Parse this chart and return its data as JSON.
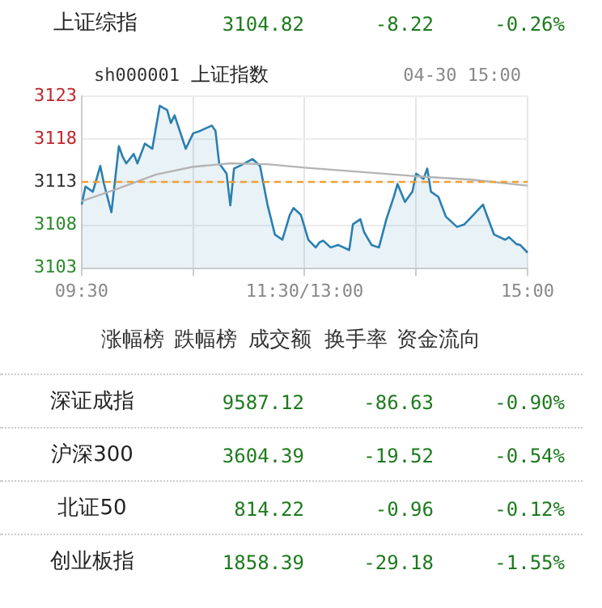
{
  "chart_data": {
    "type": "area",
    "categories": [
      "09:30",
      null,
      null,
      null,
      null,
      null,
      null,
      null,
      null,
      null,
      null,
      null,
      null,
      null,
      null,
      null,
      null,
      null,
      null,
      null,
      null,
      null,
      null,
      null,
      null,
      null,
      null,
      null,
      null,
      null,
      null,
      null,
      null,
      null,
      null,
      null,
      null,
      null,
      null,
      null,
      null,
      null,
      null,
      null,
      null,
      null,
      null,
      null,
      null,
      null,
      null,
      null,
      null,
      null,
      null,
      null,
      null,
      null,
      null,
      null,
      "11:30/13:00",
      null,
      null,
      null,
      null,
      null,
      null,
      null,
      null,
      null,
      null,
      null,
      null,
      null,
      null,
      null,
      null,
      null,
      null,
      null,
      null,
      null,
      null,
      null,
      null,
      null,
      null,
      null,
      null,
      null,
      null,
      null,
      null,
      null,
      null,
      null,
      null,
      null,
      null,
      null,
      null,
      null,
      null,
      null,
      null,
      null,
      null,
      null,
      null,
      null,
      null,
      null,
      null,
      null,
      null,
      null,
      null,
      null,
      null,
      null,
      "15:00"
    ],
    "series": [
      {
        "color": "#2a7fb0",
        "values": [
          3110.4,
          3112.5,
          null,
          3111.9,
          null,
          3114.9,
          3112.8,
          null,
          3109.5,
          null,
          3117.2,
          3116.0,
          3115.2,
          null,
          3116.3,
          3115.2,
          null,
          3117.5,
          null,
          3116.9,
          null,
          3121.9,
          null,
          3121.4,
          3119.9,
          3120.8,
          null,
          null,
          3116.9,
          null,
          3118.7,
          null,
          3119.0,
          null,
          null,
          3119.6,
          3119.0,
          3115.2,
          null,
          3114.0,
          3110.3,
          3114.6,
          null,
          3115.0,
          null,
          null,
          3115.7,
          null,
          3114.9,
          null,
          3110.4,
          null,
          3106.9,
          null,
          3106.3,
          null,
          3109.2,
          3110.0,
          null,
          3109.2,
          null,
          3106.3,
          null,
          3105.4,
          3106.0,
          3106.2,
          null,
          3105.4,
          null,
          3105.7,
          null,
          null,
          3105.1,
          3108.1,
          null,
          3108.7,
          3107.2,
          null,
          3105.7,
          null,
          3105.4,
          null,
          3108.7,
          null,
          3111.3,
          3112.8,
          null,
          3110.7,
          null,
          3111.9,
          3114.0,
          null,
          3113.4,
          3114.6,
          3111.9,
          null,
          3111.3,
          null,
          3109.0,
          null,
          null,
          3107.8,
          null,
          3108.1,
          null,
          3109.0,
          null,
          null,
          3110.4,
          3109.2,
          null,
          3106.9,
          null,
          null,
          3106.3,
          3106.6,
          null,
          3105.8,
          3105.7,
          null,
          3104.8
        ]
      },
      {
        "type": "line",
        "color": "#b4b4b4",
        "values": [
          3110.8,
          null,
          null,
          null,
          null,
          null,
          null,
          null,
          null,
          null,
          3112.3,
          null,
          null,
          null,
          null,
          null,
          null,
          null,
          null,
          null,
          3113.9,
          null,
          null,
          null,
          null,
          null,
          null,
          null,
          null,
          null,
          3114.8,
          null,
          null,
          null,
          null,
          null,
          null,
          null,
          null,
          null,
          3115.2,
          null,
          null,
          null,
          null,
          null,
          null,
          null,
          null,
          null,
          3115.1,
          null,
          null,
          null,
          null,
          null,
          null,
          null,
          null,
          null,
          3114.7,
          null,
          null,
          null,
          null,
          null,
          null,
          null,
          null,
          null,
          null,
          null,
          null,
          null,
          null,
          3114.2,
          null,
          null,
          null,
          null,
          null,
          null,
          null,
          null,
          null,
          null,
          null,
          null,
          null,
          null,
          3113.7,
          null,
          null,
          null,
          null,
          null,
          null,
          null,
          null,
          null,
          null,
          null,
          null,
          null,
          null,
          3113.3,
          null,
          null,
          null,
          null,
          null,
          null,
          null,
          null,
          null,
          null,
          null,
          null,
          null,
          null,
          3112.6
        ]
      }
    ],
    "ylim": [
      3103,
      3123
    ],
    "yticks": [
      3103,
      3108,
      3113,
      3118,
      3123
    ],
    "ref_lines": [
      {
        "axis": "y",
        "value": 3113.04,
        "label": null,
        "color": "#f0a030",
        "line_style": "dashed"
      }
    ],
    "grid": true,
    "legend": false,
    "marker": "none",
    "annotations": [
      "上证综指",
      "3104.82",
      "-8.22",
      "-0.26%",
      "sh000001",
      "上证指数",
      "04-30 15:00",
      "涨幅榜",
      "跌幅榜",
      "成交额",
      "换手率",
      "资金流向",
      "深证成指",
      "9587.12",
      "-86.63",
      "-0.90%",
      "沪深300",
      "3604.39",
      "-19.52",
      "-0.54%",
      "北证50",
      "814.22",
      "-0.96",
      "-0.12%",
      "创业板指",
      "1858.39",
      "-29.18",
      "-1.55%"
    ]
  }
}
